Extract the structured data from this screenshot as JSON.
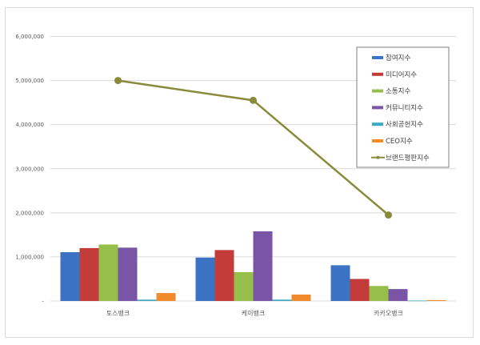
{
  "chart_data": {
    "type": "bar",
    "title": "",
    "xlabel": "",
    "ylabel": "",
    "ylim": [
      0,
      6000000
    ],
    "yticks": [
      0,
      1000000,
      2000000,
      3000000,
      4000000,
      5000000,
      6000000
    ],
    "ytick_labels": [
      "-",
      "1,000,000",
      "2,000,000",
      "3,000,000",
      "4,000,000",
      "5,000,000",
      "6,000,000"
    ],
    "categories": [
      "토스뱅크",
      "케이뱅크",
      "카카오뱅크"
    ],
    "grid": true,
    "legend_position": "right-inset",
    "series": [
      {
        "name": "참여지수",
        "type": "bar",
        "color": "#3b73c4",
        "values": [
          1107000,
          985000,
          810000
        ]
      },
      {
        "name": "미디어지수",
        "type": "bar",
        "color": "#c43c3a",
        "values": [
          1200000,
          1155000,
          500000
        ]
      },
      {
        "name": "소통지수",
        "type": "bar",
        "color": "#95be4a",
        "values": [
          1280000,
          653000,
          340000
        ]
      },
      {
        "name": "커뮤니티지수",
        "type": "bar",
        "color": "#7a55a6",
        "values": [
          1210000,
          1580000,
          270000
        ]
      },
      {
        "name": "사회공헌지수",
        "type": "bar",
        "color": "#3ba9c4",
        "values": [
          30000,
          30000,
          10000
        ]
      },
      {
        "name": "CEO지수",
        "type": "bar",
        "color": "#f08a2a",
        "values": [
          180000,
          145000,
          20000
        ]
      },
      {
        "name": "브랜드평판지수",
        "type": "line",
        "color": "#8a8a3a",
        "values": [
          5000000,
          4550000,
          1950000
        ]
      }
    ]
  }
}
